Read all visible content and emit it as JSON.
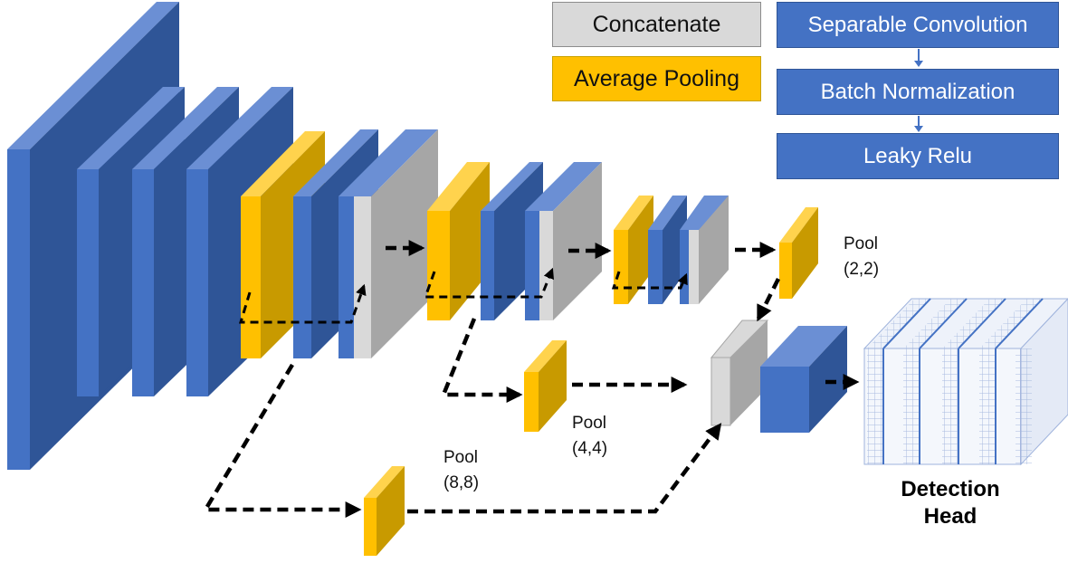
{
  "legend": {
    "concatenate": "Concatenate",
    "average_pooling": "Average Pooling"
  },
  "block": {
    "step1": "Separable Convolution",
    "step2": "Batch Normalization",
    "step3": "Leaky Relu"
  },
  "pool_labels": {
    "p22_line1": "Pool",
    "p22_line2": "(2,2)",
    "p44_line1": "Pool",
    "p44_line2": "(4,4)",
    "p88_line1": "Pool",
    "p88_line2": "(8,8)"
  },
  "detection_head": {
    "line1": "Detection",
    "line2": "Head"
  },
  "colors": {
    "conv_front": "#4472c4",
    "conv_side": "#2f5597",
    "conv_top": "#6b8fd4",
    "pool_front": "#ffc000",
    "pool_side": "#c89a00",
    "pool_top": "#ffd34d",
    "concat_front": "#d9d9d9",
    "concat_side": "#a6a6a6",
    "arrow": "#000000"
  }
}
